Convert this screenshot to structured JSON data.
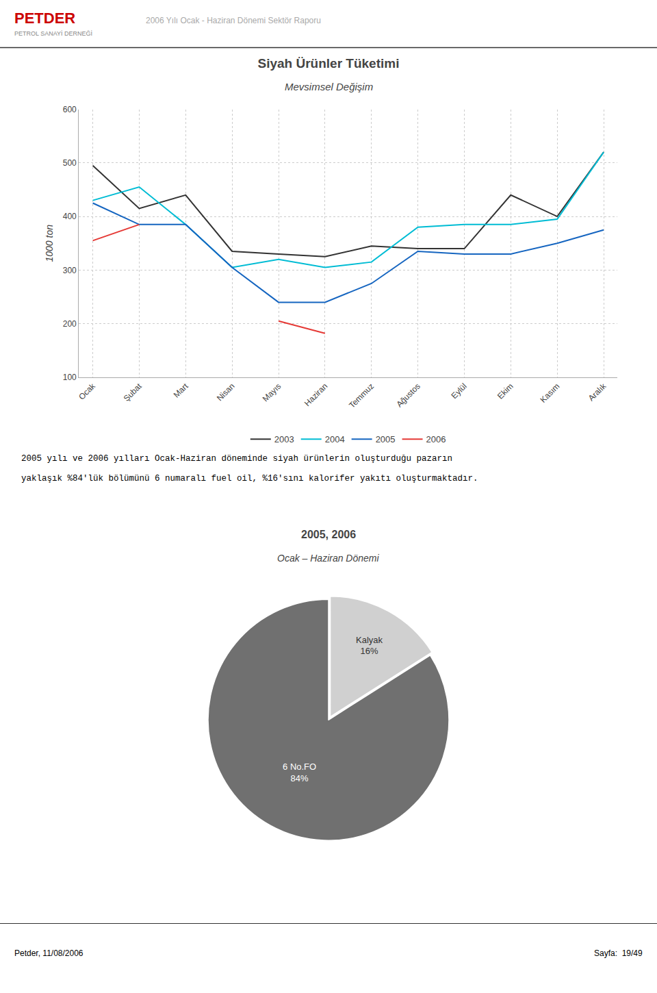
{
  "chart_data": [
    {
      "type": "line",
      "title": "Siyah Ürünler Tüketimi",
      "subtitle": "Mevsimsel Değişim",
      "ylabel": "1000 ton",
      "categories": [
        "Ocak",
        "Şubat",
        "Mart",
        "Nisan",
        "Mayıs",
        "Haziran",
        "Temmuz",
        "Ağustos",
        "Eylül",
        "Ekim",
        "Kasım",
        "Aralık"
      ],
      "series": [
        {
          "name": "2003",
          "color": "#333333",
          "values": [
            495,
            415,
            440,
            335,
            330,
            325,
            345,
            340,
            340,
            440,
            400,
            520
          ]
        },
        {
          "name": "2004",
          "color": "#00bcd4",
          "values": [
            430,
            455,
            385,
            305,
            320,
            305,
            315,
            380,
            385,
            385,
            395,
            520
          ]
        },
        {
          "name": "2005",
          "color": "#1565c0",
          "values": [
            425,
            385,
            385,
            305,
            240,
            240,
            275,
            335,
            330,
            330,
            350,
            375
          ]
        },
        {
          "name": "2006",
          "color": "#e53935",
          "values": [
            355,
            385,
            null,
            null,
            205,
            182,
            null,
            null,
            null,
            null,
            null,
            null
          ]
        }
      ],
      "ylim": [
        100,
        600
      ],
      "yticks": [
        100,
        200,
        300,
        400,
        500,
        600
      ],
      "grid": true,
      "legend": "bottom",
      "annotations": [
        "PETDER",
        "PETROL SANAYİ DERNEĞİ",
        "2006 Yılı Ocak - Haziran Dönemi Sektör Raporu",
        "2005 yılı ve 2006 yılları Ocak-Haziran döneminde siyah ürünlerin oluşturduğu pazarın",
        "yaklaşık %84'lük bölümünü 6 numaralı fuel oil, %16'sını kalorifer yakıtı oluşturmaktadır.",
        "Petder, 11/08/2006",
        "Sayfa:  19/49"
      ]
    },
    {
      "type": "pie",
      "title": "2005, 2006",
      "subtitle": "Ocak – Haziran Dönemi",
      "categories": [
        "Kalyak",
        "6 No.FO"
      ],
      "values": [
        16,
        84
      ],
      "value_labels": [
        "16%",
        "84%"
      ],
      "colors": [
        "#d0d0d0",
        "#707070"
      ],
      "data_labels": true
    }
  ]
}
